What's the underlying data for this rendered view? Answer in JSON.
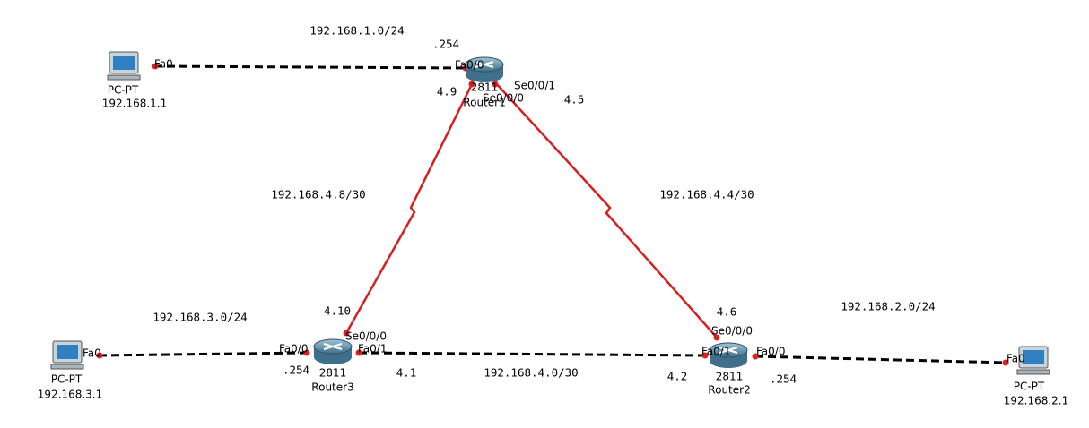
{
  "pcs": [
    {
      "model": "PC-PT",
      "ip": "192.168.1.1",
      "port": "Fa0"
    },
    {
      "model": "PC-PT",
      "ip": "192.168.3.1",
      "port": "Fa0"
    },
    {
      "model": "PC-PT",
      "ip": "192.168.2.1",
      "port": "Fa0"
    }
  ],
  "routers": [
    {
      "model": "2811",
      "name": "Router1",
      "interfaces": [
        "Fa0/0",
        "Se0/0/1",
        "Se0/0/0"
      ],
      "addresses": [
        ".254",
        "4.9",
        "4.5"
      ]
    },
    {
      "model": "2811",
      "name": "Router3",
      "interfaces": [
        "Fa0/0",
        "Fa0/1",
        "Se0/0/0"
      ],
      "addresses": [
        ".254",
        "4.1",
        "4.10"
      ]
    },
    {
      "model": "2811",
      "name": "Router2",
      "interfaces": [
        "Fa0/1",
        "Fa0/0",
        "Se0/0/0"
      ],
      "addresses": [
        "4.2",
        ".254",
        "4.6"
      ]
    }
  ],
  "networks": [
    "192.168.1.0/24",
    "192.168.4.8/30",
    "192.168.4.4/30",
    "192.168.3.0/24",
    "192.168.4.0/30",
    "192.168.2.0/24"
  ]
}
